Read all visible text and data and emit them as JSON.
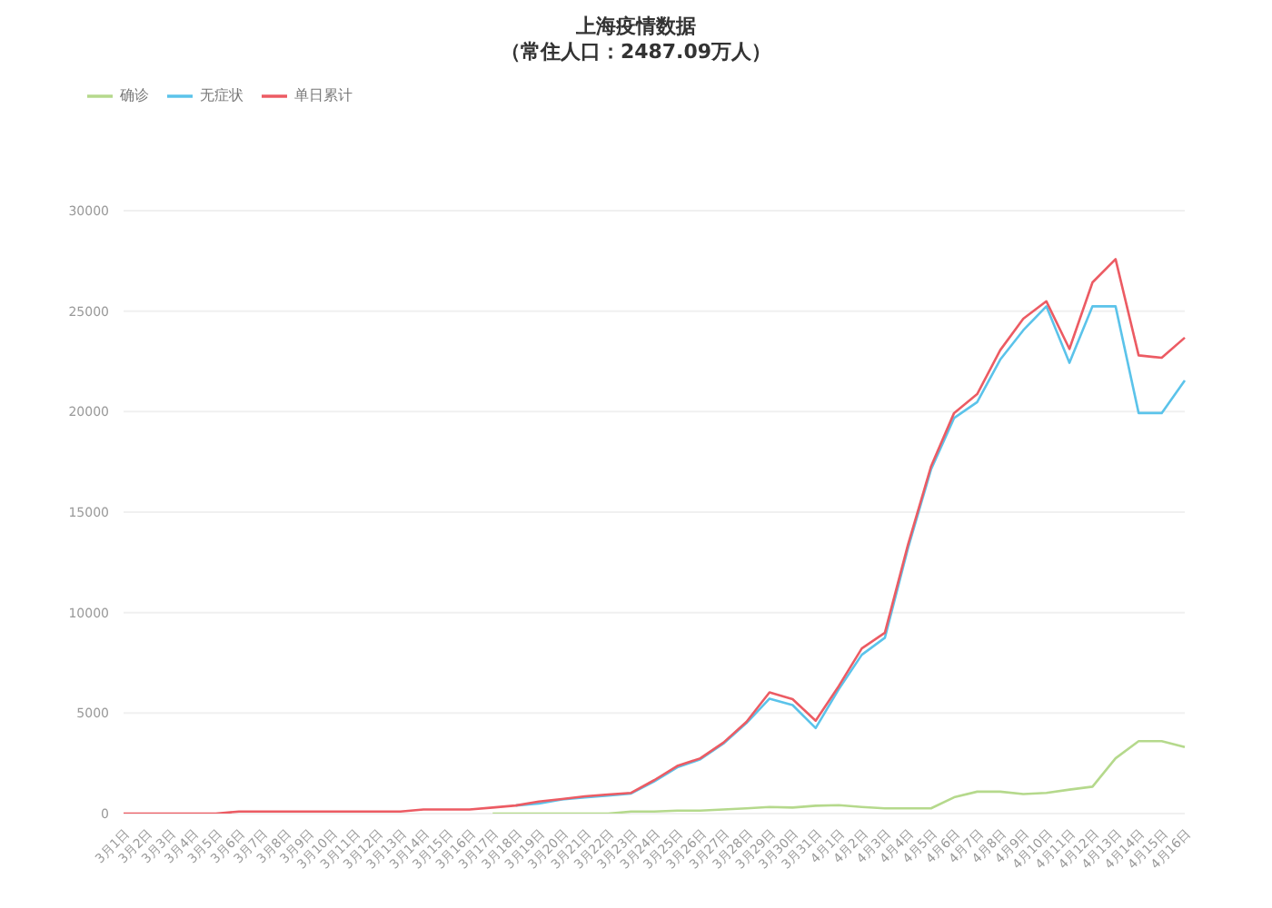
{
  "chart_data": {
    "type": "line",
    "title": "上海疫情数据",
    "subtitle": "（常住人口：2487.09万人）",
    "categories": [
      "3月1日",
      "3月2日",
      "3月3日",
      "3月4日",
      "3月5日",
      "3月6日",
      "3月7日",
      "3月8日",
      "3月9日",
      "3月10日",
      "3月11日",
      "3月12日",
      "3月13日",
      "3月14日",
      "3月15日",
      "3月16日",
      "3月17日",
      "3月18日",
      "3月19日",
      "3月20日",
      "3月21日",
      "3月22日",
      "3月23日",
      "3月24日",
      "3月25日",
      "3月26日",
      "3月27日",
      "3月28日",
      "3月29日",
      "3月30日",
      "3月31日",
      "4月1日",
      "4月2日",
      "4月3日",
      "4月4日",
      "4月5日",
      "4月6日",
      "4月7日",
      "4月8日",
      "4月9日",
      "4月10日",
      "4月11日",
      "4月12日",
      "4月13日",
      "4月14日",
      "4月15日",
      "4月16日"
    ],
    "series": [
      {
        "name": "确诊",
        "color": "#b5d98c",
        "values": [
          null,
          null,
          null,
          null,
          null,
          null,
          null,
          null,
          null,
          null,
          null,
          null,
          null,
          null,
          null,
          null,
          0,
          0,
          0,
          0,
          0,
          0,
          100,
          100,
          150,
          150,
          200,
          260,
          330,
          300,
          390,
          420,
          330,
          260,
          260,
          260,
          810,
          1090,
          1090,
          970,
          1030,
          1190,
          1340,
          2750,
          3600,
          3600,
          3310
        ]
      },
      {
        "name": "无症状",
        "color": "#5bc3ea",
        "values": [
          null,
          null,
          null,
          null,
          null,
          null,
          null,
          null,
          null,
          null,
          null,
          null,
          null,
          null,
          null,
          null,
          null,
          400,
          500,
          700,
          800,
          900,
          1000,
          1600,
          2300,
          2700,
          3480,
          4500,
          5720,
          5400,
          4250,
          6190,
          7900,
          8750,
          13200,
          17120,
          19680,
          20470,
          22590,
          24050,
          25240,
          22430,
          25240,
          25240,
          19930,
          19930,
          21550
        ]
      },
      {
        "name": "单日累计",
        "color": "#ec5b63",
        "values": [
          0,
          0,
          0,
          0,
          0,
          100,
          100,
          100,
          100,
          100,
          100,
          100,
          100,
          200,
          200,
          200,
          300,
          400,
          600,
          720,
          860,
          950,
          1030,
          1660,
          2370,
          2750,
          3530,
          4560,
          6030,
          5690,
          4620,
          6340,
          8220,
          9000,
          13370,
          17270,
          19930,
          20870,
          23060,
          24620,
          25490,
          23120,
          26430,
          27590,
          22800,
          22680,
          23680
        ]
      }
    ],
    "ylim": [
      0,
      30000
    ],
    "yticks": [
      0,
      5000,
      10000,
      15000,
      20000,
      25000,
      30000
    ],
    "grid": "y",
    "legend": "top left",
    "marker": "none",
    "line_style": "solid"
  }
}
